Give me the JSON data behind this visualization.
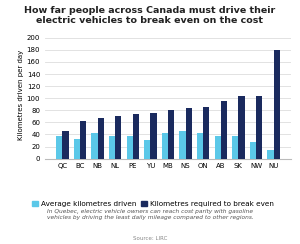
{
  "title_line1": "How far people across Canada must drive their",
  "title_line2": "electric vehicles to break even on the cost",
  "categories": [
    "QC",
    "BC",
    "NB",
    "NL",
    "PE",
    "YU",
    "MB",
    "NS",
    "ON",
    "AB",
    "SK",
    "NW",
    "NU"
  ],
  "avg_driven": [
    38,
    32,
    42,
    38,
    38,
    30,
    42,
    45,
    42,
    38,
    38,
    27,
    15
  ],
  "break_even": [
    45,
    62,
    67,
    70,
    73,
    75,
    80,
    83,
    85,
    95,
    103,
    103,
    180
  ],
  "color_avg": "#5bc8e8",
  "color_breakeven": "#1a2a5e",
  "ylabel": "Kilometres driven per day",
  "ylim": [
    0,
    210
  ],
  "yticks": [
    0,
    20,
    40,
    60,
    80,
    100,
    120,
    140,
    160,
    180,
    200
  ],
  "legend_avg": "Average kilometres driven",
  "legend_breakeven": "Kilometres required to break even",
  "annotation": "In Quebec, electric vehicle owners can reach cost parity with gasoline\nvehicles by driving the least daily mileage compared to other regions.",
  "source": "Source: LIRC",
  "bg_color": "#ffffff",
  "title_fontsize": 6.8,
  "label_fontsize": 5.0,
  "tick_fontsize": 5.0,
  "legend_fontsize": 5.2,
  "annotation_fontsize": 4.2,
  "source_fontsize": 4.0
}
